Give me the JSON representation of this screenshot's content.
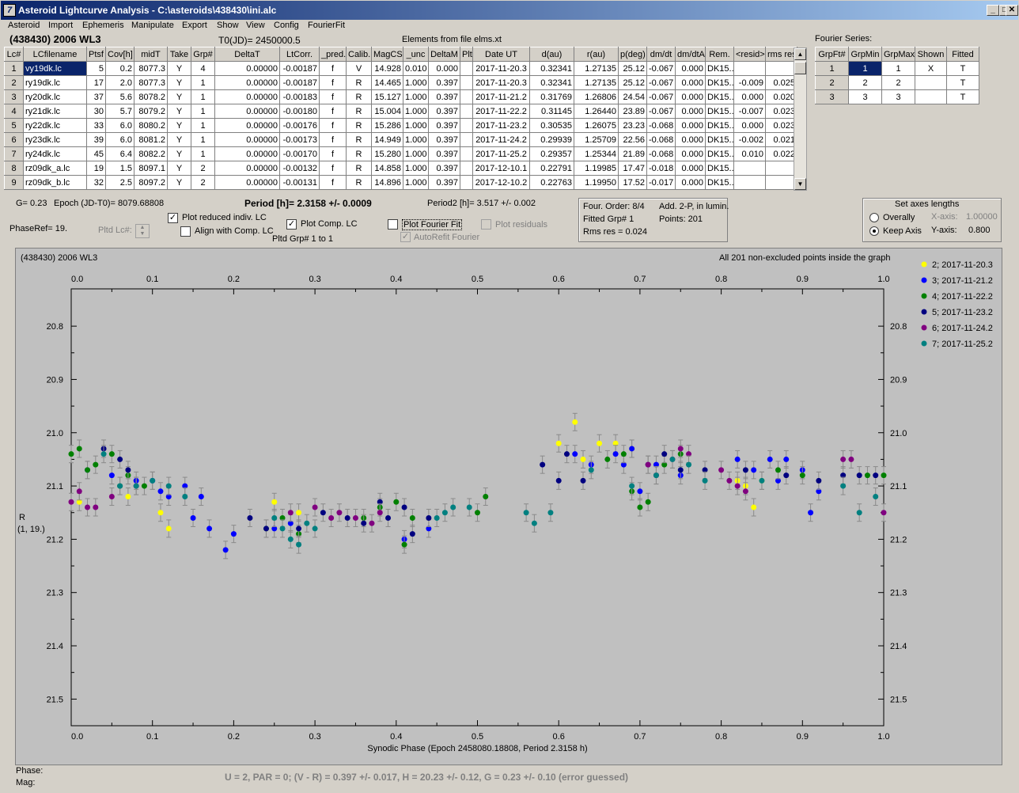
{
  "window": {
    "title": "Asteroid Lightcurve Analysis - C:\\asteroids\\438430\\ini.alc"
  },
  "menu": [
    "Asteroid",
    "Import",
    "Ephemeris",
    "Manipulate",
    "Export",
    "Show",
    "View",
    "Config",
    "FourierFit"
  ],
  "header": {
    "object": "(438430) 2006 WL3",
    "t0": "T0(JD)= 2450000.5",
    "elements": "Elements from file elms.xt",
    "fourier_series": "Fourier Series:"
  },
  "lc_table": {
    "columns": [
      "Lc#",
      "LCfilename",
      "Ptsf",
      "Cov[h]",
      "midT",
      "Take",
      "Grp#",
      "DeltaT",
      "LtCorr.",
      "_pred.",
      "Calib.",
      "MagCS",
      "_unc",
      "DeltaM",
      "Plt",
      "Date UT",
      "d(au)",
      "r(au)",
      "p(deg)",
      "dm/dt",
      "dm/dtA",
      "Rem.",
      "<resid>",
      "rms res"
    ],
    "rows": [
      [
        "1",
        "vy19dk.lc",
        "5",
        "0.2",
        "8077.3",
        "Y",
        "4",
        "0.00000",
        "-0.00187",
        "f",
        "V",
        "14.928",
        "0.010",
        "0.000",
        "",
        "2017-11-20.3",
        "0.32341",
        "1.27135",
        "25.12",
        "-0.067",
        "0.000",
        "DK15...",
        "",
        ""
      ],
      [
        "2",
        "ry19dk.lc",
        "17",
        "2.0",
        "8077.3",
        "Y",
        "1",
        "0.00000",
        "-0.00187",
        "f",
        "R",
        "14.465",
        "1.000",
        "0.397",
        "",
        "2017-11-20.3",
        "0.32341",
        "1.27135",
        "25.12",
        "-0.067",
        "0.000",
        "DK15...",
        "-0.009",
        "0.025"
      ],
      [
        "3",
        "ry20dk.lc",
        "37",
        "5.6",
        "8078.2",
        "Y",
        "1",
        "0.00000",
        "-0.00183",
        "f",
        "R",
        "15.127",
        "1.000",
        "0.397",
        "",
        "2017-11-21.2",
        "0.31769",
        "1.26806",
        "24.54",
        "-0.067",
        "0.000",
        "DK15...",
        "0.000",
        "0.020"
      ],
      [
        "4",
        "ry21dk.lc",
        "30",
        "5.7",
        "8079.2",
        "Y",
        "1",
        "0.00000",
        "-0.00180",
        "f",
        "R",
        "15.004",
        "1.000",
        "0.397",
        "",
        "2017-11-22.2",
        "0.31145",
        "1.26440",
        "23.89",
        "-0.067",
        "0.000",
        "DK15...",
        "-0.007",
        "0.023"
      ],
      [
        "5",
        "ry22dk.lc",
        "33",
        "6.0",
        "8080.2",
        "Y",
        "1",
        "0.00000",
        "-0.00176",
        "f",
        "R",
        "15.286",
        "1.000",
        "0.397",
        "",
        "2017-11-23.2",
        "0.30535",
        "1.26075",
        "23.23",
        "-0.068",
        "0.000",
        "DK15...",
        "0.000",
        "0.023"
      ],
      [
        "6",
        "ry23dk.lc",
        "39",
        "6.0",
        "8081.2",
        "Y",
        "1",
        "0.00000",
        "-0.00173",
        "f",
        "R",
        "14.949",
        "1.000",
        "0.397",
        "",
        "2017-11-24.2",
        "0.29939",
        "1.25709",
        "22.56",
        "-0.068",
        "0.000",
        "DK15...",
        "-0.002",
        "0.021"
      ],
      [
        "7",
        "ry24dk.lc",
        "45",
        "6.4",
        "8082.2",
        "Y",
        "1",
        "0.00000",
        "-0.00170",
        "f",
        "R",
        "15.280",
        "1.000",
        "0.397",
        "",
        "2017-11-25.2",
        "0.29357",
        "1.25344",
        "21.89",
        "-0.068",
        "0.000",
        "DK15...",
        "0.010",
        "0.022"
      ],
      [
        "8",
        "rz09dk_a.lc",
        "19",
        "1.5",
        "8097.1",
        "Y",
        "2",
        "0.00000",
        "-0.00132",
        "f",
        "R",
        "14.858",
        "1.000",
        "0.397",
        "",
        "2017-12-10.1",
        "0.22791",
        "1.19985",
        "17.47",
        "-0.018",
        "0.000",
        "DK15...",
        "",
        ""
      ],
      [
        "9",
        "rz09dk_b.lc",
        "32",
        "2.5",
        "8097.2",
        "Y",
        "2",
        "0.00000",
        "-0.00131",
        "f",
        "R",
        "14.896",
        "1.000",
        "0.397",
        "",
        "2017-12-10.2",
        "0.22763",
        "1.19950",
        "17.52",
        "-0.017",
        "0.000",
        "DK15...",
        "",
        ""
      ]
    ]
  },
  "fourier_table": {
    "columns": [
      "GrpFt#",
      "GrpMin",
      "GrpMax",
      "Shown",
      "Fitted"
    ],
    "rows": [
      [
        "1",
        "1",
        "1",
        "X",
        "T"
      ],
      [
        "2",
        "2",
        "2",
        "",
        "T"
      ],
      [
        "3",
        "3",
        "3",
        "",
        "T"
      ]
    ]
  },
  "info": {
    "g": "G= 0.23",
    "epoch": "Epoch (JD-T0)= 8079.68808",
    "period": "Period [h]= 2.3158 +/- 0.0009",
    "period2": "Period2 [h]= 3.517 +/- 0.002",
    "phaseref": "PhaseRef= 19.",
    "pltd_lc": "Pltd Lc#:",
    "plot_reduced": "Plot reduced indiv. LC",
    "align": "Align with Comp. LC",
    "plot_comp": "Plot Comp. LC",
    "pltd_grp": "Pltd Grp#  1   to   1",
    "plot_fourier": "Plot Fourier Fit",
    "autorefit": "AutoRefit Fourier",
    "plot_residuals": "Plot residuals",
    "four_order": "Four. Order:  8/4",
    "fitted_grp": "Fitted Grp# 1",
    "rms_res": "Rms res      = 0.024",
    "add": "Add. 2-P, in lumin.",
    "points": "Points: 201",
    "axes_title": "Set axes lengths",
    "overally": "Overally",
    "keep_axis": "Keep Axis",
    "x_axis": "X-axis:",
    "x_val": "1.00000",
    "y_axis": "Y-axis:",
    "y_val": "0.800"
  },
  "footer": {
    "phase": "Phase:",
    "mag": "Mag:",
    "summary": "U = 2, PAR = 0; (V - R) = 0.397 +/- 0.017, H = 20.23 +/- 0.12, G = 0.23 +/- 0.10 (error guessed)"
  },
  "chart_data": {
    "type": "scatter",
    "title": "(438430) 2006 WL3",
    "subtitle": "All 201 non-excluded points inside the graph",
    "xlabel": "Synodic Phase (Epoch 2458080.18808, Period 2.3158 h)",
    "ylabel": "R",
    "ylabel2": "(1, 19.)",
    "xlim": [
      0,
      1.0
    ],
    "ylim": [
      21.55,
      20.73
    ],
    "y_inverted": true,
    "xticks": [
      "0.0",
      "0.1",
      "0.2",
      "0.3",
      "0.4",
      "0.5",
      "0.6",
      "0.7",
      "0.8",
      "0.9",
      "1.0"
    ],
    "yticks": [
      "20.8",
      "20.9",
      "21.0",
      "21.1",
      "21.2",
      "21.3",
      "21.4",
      "21.5"
    ],
    "legend_position": "top-right",
    "series": [
      {
        "name": "2; 2017-11-20.3",
        "color": "#ffff00",
        "points": [
          [
            0.01,
            21.13
          ],
          [
            0.07,
            21.12
          ],
          [
            0.11,
            21.15
          ],
          [
            0.12,
            21.18
          ],
          [
            0.25,
            21.13
          ],
          [
            0.28,
            21.15
          ],
          [
            0.6,
            21.02
          ],
          [
            0.62,
            20.98
          ],
          [
            0.63,
            21.05
          ],
          [
            0.65,
            21.02
          ],
          [
            0.67,
            21.02
          ],
          [
            0.69,
            21.03
          ],
          [
            0.82,
            21.09
          ],
          [
            0.83,
            21.1
          ],
          [
            0.84,
            21.14
          ],
          [
            0.85,
            21.09
          ]
        ]
      },
      {
        "name": "3; 2017-11-21.2",
        "color": "#0000ff",
        "points": [
          [
            0.02,
            21.07
          ],
          [
            0.05,
            21.08
          ],
          [
            0.08,
            21.09
          ],
          [
            0.1,
            21.09
          ],
          [
            0.11,
            21.11
          ],
          [
            0.12,
            21.12
          ],
          [
            0.14,
            21.1
          ],
          [
            0.15,
            21.16
          ],
          [
            0.16,
            21.12
          ],
          [
            0.17,
            21.18
          ],
          [
            0.19,
            21.22
          ],
          [
            0.2,
            21.19
          ],
          [
            0.25,
            21.18
          ],
          [
            0.27,
            21.17
          ],
          [
            0.41,
            21.2
          ],
          [
            0.44,
            21.18
          ],
          [
            0.62,
            21.04
          ],
          [
            0.64,
            21.06
          ],
          [
            0.67,
            21.04
          ],
          [
            0.68,
            21.06
          ],
          [
            0.69,
            21.03
          ],
          [
            0.7,
            21.11
          ],
          [
            0.72,
            21.06
          ],
          [
            0.75,
            21.08
          ],
          [
            0.82,
            21.05
          ],
          [
            0.84,
            21.07
          ],
          [
            0.86,
            21.05
          ],
          [
            0.87,
            21.09
          ],
          [
            0.88,
            21.05
          ],
          [
            0.9,
            21.07
          ],
          [
            0.91,
            21.15
          ],
          [
            0.92,
            21.11
          ]
        ]
      },
      {
        "name": "4; 2017-11-22.2",
        "color": "#008000",
        "points": [
          [
            0.0,
            21.04
          ],
          [
            0.01,
            21.03
          ],
          [
            0.02,
            21.07
          ],
          [
            0.03,
            21.06
          ],
          [
            0.05,
            21.04
          ],
          [
            0.06,
            21.1
          ],
          [
            0.07,
            21.08
          ],
          [
            0.09,
            21.1
          ],
          [
            0.24,
            21.18
          ],
          [
            0.26,
            21.16
          ],
          [
            0.28,
            21.19
          ],
          [
            0.36,
            21.16
          ],
          [
            0.38,
            21.14
          ],
          [
            0.4,
            21.13
          ],
          [
            0.41,
            21.21
          ],
          [
            0.42,
            21.16
          ],
          [
            0.5,
            21.15
          ],
          [
            0.51,
            21.12
          ],
          [
            0.66,
            21.05
          ],
          [
            0.68,
            21.04
          ],
          [
            0.69,
            21.11
          ],
          [
            0.7,
            21.14
          ],
          [
            0.71,
            21.13
          ],
          [
            0.73,
            21.06
          ],
          [
            0.75,
            21.04
          ],
          [
            0.87,
            21.07
          ],
          [
            0.9,
            21.08
          ],
          [
            0.98,
            21.08
          ],
          [
            1.0,
            21.08
          ]
        ]
      },
      {
        "name": "5; 2017-11-23.2",
        "color": "#000080",
        "points": [
          [
            0.04,
            21.03
          ],
          [
            0.06,
            21.05
          ],
          [
            0.07,
            21.07
          ],
          [
            0.22,
            21.16
          ],
          [
            0.24,
            21.18
          ],
          [
            0.28,
            21.18
          ],
          [
            0.31,
            21.15
          ],
          [
            0.34,
            21.16
          ],
          [
            0.36,
            21.17
          ],
          [
            0.38,
            21.13
          ],
          [
            0.39,
            21.16
          ],
          [
            0.41,
            21.14
          ],
          [
            0.42,
            21.19
          ],
          [
            0.44,
            21.16
          ],
          [
            0.58,
            21.06
          ],
          [
            0.6,
            21.09
          ],
          [
            0.61,
            21.04
          ],
          [
            0.63,
            21.09
          ],
          [
            0.71,
            21.06
          ],
          [
            0.73,
            21.04
          ],
          [
            0.75,
            21.07
          ],
          [
            0.78,
            21.07
          ],
          [
            0.83,
            21.07
          ],
          [
            0.88,
            21.08
          ],
          [
            0.92,
            21.09
          ],
          [
            0.95,
            21.08
          ],
          [
            0.97,
            21.08
          ],
          [
            0.99,
            21.08
          ]
        ]
      },
      {
        "name": "6; 2017-11-24.2",
        "color": "#800080",
        "points": [
          [
            0.0,
            21.13
          ],
          [
            0.01,
            21.11
          ],
          [
            0.02,
            21.14
          ],
          [
            0.03,
            21.14
          ],
          [
            0.05,
            21.12
          ],
          [
            0.08,
            21.1
          ],
          [
            0.27,
            21.15
          ],
          [
            0.3,
            21.14
          ],
          [
            0.32,
            21.16
          ],
          [
            0.33,
            21.15
          ],
          [
            0.35,
            21.16
          ],
          [
            0.37,
            21.17
          ],
          [
            0.38,
            21.15
          ],
          [
            0.71,
            21.06
          ],
          [
            0.72,
            21.08
          ],
          [
            0.74,
            21.05
          ],
          [
            0.75,
            21.03
          ],
          [
            0.76,
            21.04
          ],
          [
            0.8,
            21.07
          ],
          [
            0.81,
            21.09
          ],
          [
            0.82,
            21.1
          ],
          [
            0.83,
            21.11
          ],
          [
            0.95,
            21.05
          ],
          [
            0.96,
            21.05
          ],
          [
            1.0,
            21.15
          ]
        ]
      },
      {
        "name": "7; 2017-11-25.2",
        "color": "#008080",
        "points": [
          [
            0.04,
            21.04
          ],
          [
            0.06,
            21.1
          ],
          [
            0.08,
            21.1
          ],
          [
            0.1,
            21.09
          ],
          [
            0.12,
            21.1
          ],
          [
            0.14,
            21.12
          ],
          [
            0.25,
            21.16
          ],
          [
            0.26,
            21.18
          ],
          [
            0.27,
            21.2
          ],
          [
            0.28,
            21.21
          ],
          [
            0.29,
            21.17
          ],
          [
            0.3,
            21.18
          ],
          [
            0.45,
            21.16
          ],
          [
            0.46,
            21.15
          ],
          [
            0.47,
            21.14
          ],
          [
            0.49,
            21.14
          ],
          [
            0.56,
            21.15
          ],
          [
            0.57,
            21.17
          ],
          [
            0.59,
            21.15
          ],
          [
            0.64,
            21.07
          ],
          [
            0.69,
            21.1
          ],
          [
            0.72,
            21.08
          ],
          [
            0.74,
            21.05
          ],
          [
            0.76,
            21.06
          ],
          [
            0.78,
            21.09
          ],
          [
            0.85,
            21.09
          ],
          [
            0.95,
            21.1
          ],
          [
            0.97,
            21.15
          ],
          [
            0.99,
            21.12
          ]
        ]
      }
    ]
  }
}
